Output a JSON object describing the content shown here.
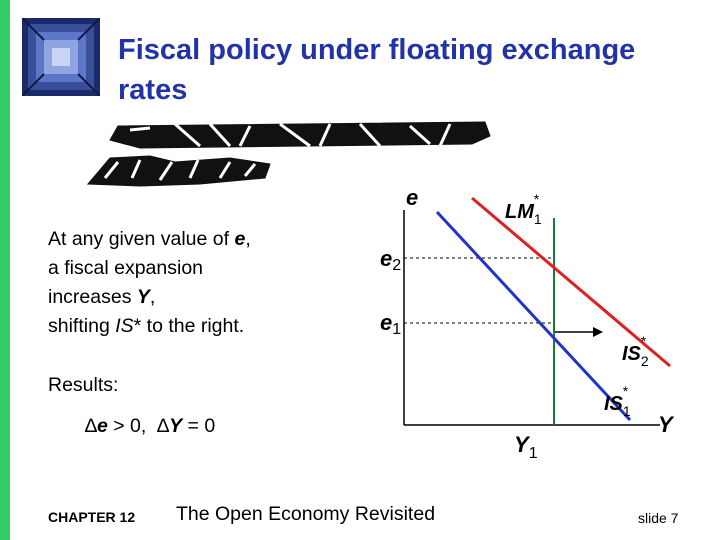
{
  "slide": {
    "title_line1": "Fiscal policy under floating exchange",
    "title_line2": "rates",
    "colors": {
      "title": "#2233aa",
      "accent_bar": "#33cc66",
      "lm_curve": "#e02020",
      "is_curve": "#2233cc",
      "axis": "#000000"
    }
  },
  "body": {
    "line1_pre": "At any given value of ",
    "line1_var": "e",
    "line1_post": ",",
    "line2": "a fiscal expansion",
    "line3_pre": "increases ",
    "line3_var": "Y",
    "line3_post": ",",
    "line4_pre": "shifting ",
    "line4_var": "IS",
    "line4_post": "* to the right."
  },
  "results": {
    "label": "Results:",
    "delta": "∆",
    "e_var": "e",
    "e_rest": " > 0,",
    "y_var": "Y",
    "y_rest": " = 0"
  },
  "diagram": {
    "y_axis_label": "e",
    "x_axis_label": "Y",
    "lm_label": "LM",
    "lm_sub": "1",
    "is2_label": "IS",
    "is2_sub": "2",
    "is1_label": "IS",
    "is1_sub": "1",
    "star": "*",
    "e2_label": "e",
    "e2_sub": "2",
    "e1_label": "e",
    "e1_sub": "1",
    "y1_label": "Y",
    "y1_sub": "1"
  },
  "footer": {
    "chapter": "CHAPTER 12",
    "book": "The Open Economy Revisited",
    "slide": "slide 7"
  }
}
